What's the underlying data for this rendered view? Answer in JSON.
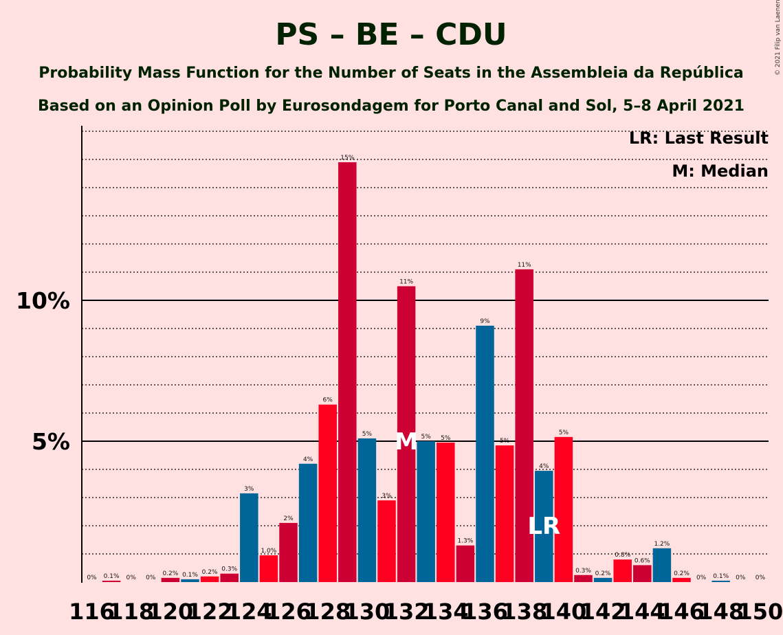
{
  "chart_data": {
    "type": "bar",
    "title": "PS – BE – CDU",
    "subtitle": "Probability Mass Function for the Number of Seats in the Assembleia da República",
    "subtitle2": "Based on an Opinion Poll by Eurosondagem for Porto Canal and Sol, 5–8 April 2021",
    "copyright": "© 2021 Filip van Laenen",
    "legend": {
      "last_result": "LR: Last Result",
      "median": "M: Median"
    },
    "y_ticks": [
      {
        "value": 5,
        "label": "5%"
      },
      {
        "value": 10,
        "label": "10%"
      }
    ],
    "ylim": [
      0,
      16.2
    ],
    "grid": true,
    "colors": {
      "red": "#ff0020",
      "crimson": "#cc0033",
      "blue": "#006699",
      "background": "#ffe1e1"
    },
    "bars": [
      {
        "seats": 116,
        "value": 0.0,
        "label": "0%",
        "color": "red"
      },
      {
        "seats": 117,
        "value": 0.05,
        "label": "0.1%",
        "color": "crimson"
      },
      {
        "seats": 118,
        "value": 0.0,
        "label": "0%",
        "color": "blue"
      },
      {
        "seats": 119,
        "value": 0.0,
        "label": "0%",
        "color": "red"
      },
      {
        "seats": 120,
        "value": 0.15,
        "label": "0.2%",
        "color": "crimson"
      },
      {
        "seats": 121,
        "value": 0.1,
        "label": "0.1%",
        "color": "blue"
      },
      {
        "seats": 122,
        "value": 0.2,
        "label": "0.2%",
        "color": "red"
      },
      {
        "seats": 123,
        "value": 0.3,
        "label": "0.3%",
        "color": "crimson"
      },
      {
        "seats": 124,
        "value": 3.15,
        "label": "3%",
        "color": "blue"
      },
      {
        "seats": 125,
        "value": 0.95,
        "label": "1.0%",
        "color": "red"
      },
      {
        "seats": 126,
        "value": 2.1,
        "label": "2%",
        "color": "crimson"
      },
      {
        "seats": 127,
        "value": 4.2,
        "label": "4%",
        "color": "blue"
      },
      {
        "seats": 128,
        "value": 6.3,
        "label": "6%",
        "color": "red"
      },
      {
        "seats": 129,
        "value": 14.9,
        "label": "15%",
        "color": "crimson"
      },
      {
        "seats": 130,
        "value": 5.1,
        "label": "5%",
        "color": "blue"
      },
      {
        "seats": 131,
        "value": 2.9,
        "label": "3%",
        "color": "red"
      },
      {
        "seats": 132,
        "value": 10.5,
        "label": "11%",
        "color": "crimson",
        "marker": "M"
      },
      {
        "seats": 133,
        "value": 5.0,
        "label": "5%",
        "color": "blue"
      },
      {
        "seats": 134,
        "value": 4.95,
        "label": "5%",
        "color": "red"
      },
      {
        "seats": 135,
        "value": 1.3,
        "label": "1.3%",
        "color": "crimson"
      },
      {
        "seats": 136,
        "value": 9.1,
        "label": "9%",
        "color": "blue"
      },
      {
        "seats": 137,
        "value": 4.85,
        "label": "5%",
        "color": "red"
      },
      {
        "seats": 138,
        "value": 11.1,
        "label": "11%",
        "color": "crimson"
      },
      {
        "seats": 139,
        "value": 3.95,
        "label": "4%",
        "color": "blue",
        "marker": "LR"
      },
      {
        "seats": 140,
        "value": 5.15,
        "label": "5%",
        "color": "red"
      },
      {
        "seats": 141,
        "value": 0.25,
        "label": "0.3%",
        "color": "crimson"
      },
      {
        "seats": 142,
        "value": 0.15,
        "label": "0.2%",
        "color": "blue"
      },
      {
        "seats": 143,
        "value": 0.8,
        "label": "0.8%",
        "color": "red"
      },
      {
        "seats": 144,
        "value": 0.6,
        "label": "0.6%",
        "color": "crimson"
      },
      {
        "seats": 145,
        "value": 1.2,
        "label": "1.2%",
        "color": "blue"
      },
      {
        "seats": 146,
        "value": 0.15,
        "label": "0.2%",
        "color": "red"
      },
      {
        "seats": 147,
        "value": 0.0,
        "label": "0%",
        "color": "crimson"
      },
      {
        "seats": 148,
        "value": 0.05,
        "label": "0.1%",
        "color": "blue"
      },
      {
        "seats": 149,
        "value": 0.0,
        "label": "0%",
        "color": "red"
      },
      {
        "seats": 150,
        "value": 0.0,
        "label": "0%",
        "color": "crimson"
      }
    ],
    "x_tick_labels": [
      "116",
      "118",
      "120",
      "122",
      "124",
      "126",
      "128",
      "130",
      "132",
      "134",
      "136",
      "138",
      "140",
      "142",
      "144",
      "146",
      "148",
      "150"
    ]
  }
}
